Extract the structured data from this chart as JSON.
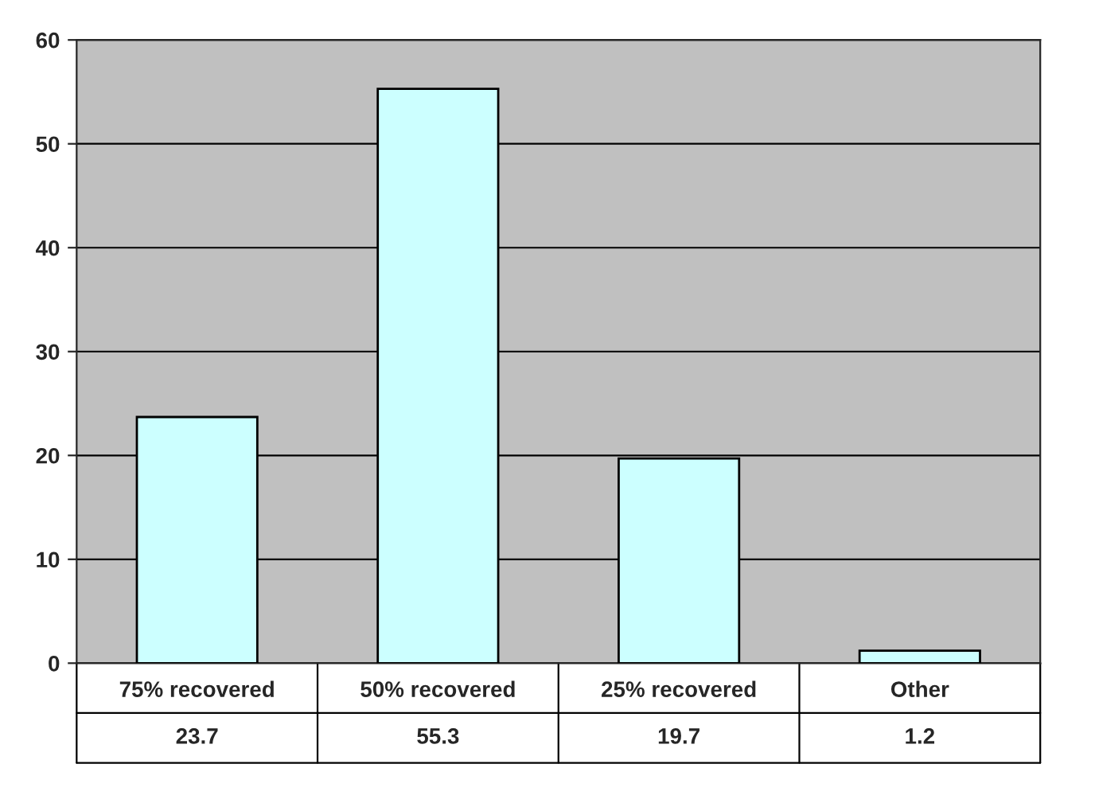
{
  "chart_data": {
    "type": "bar",
    "categories": [
      "75% recovered",
      "50% recovered",
      "25% recovered",
      "Other"
    ],
    "values": [
      23.7,
      55.3,
      19.7,
      1.2
    ],
    "color": "#ccffff",
    "ylim": [
      0,
      60
    ],
    "yticks": [
      0,
      10,
      20,
      30,
      40,
      50,
      60
    ],
    "grid": "y",
    "data_labels": true
  }
}
